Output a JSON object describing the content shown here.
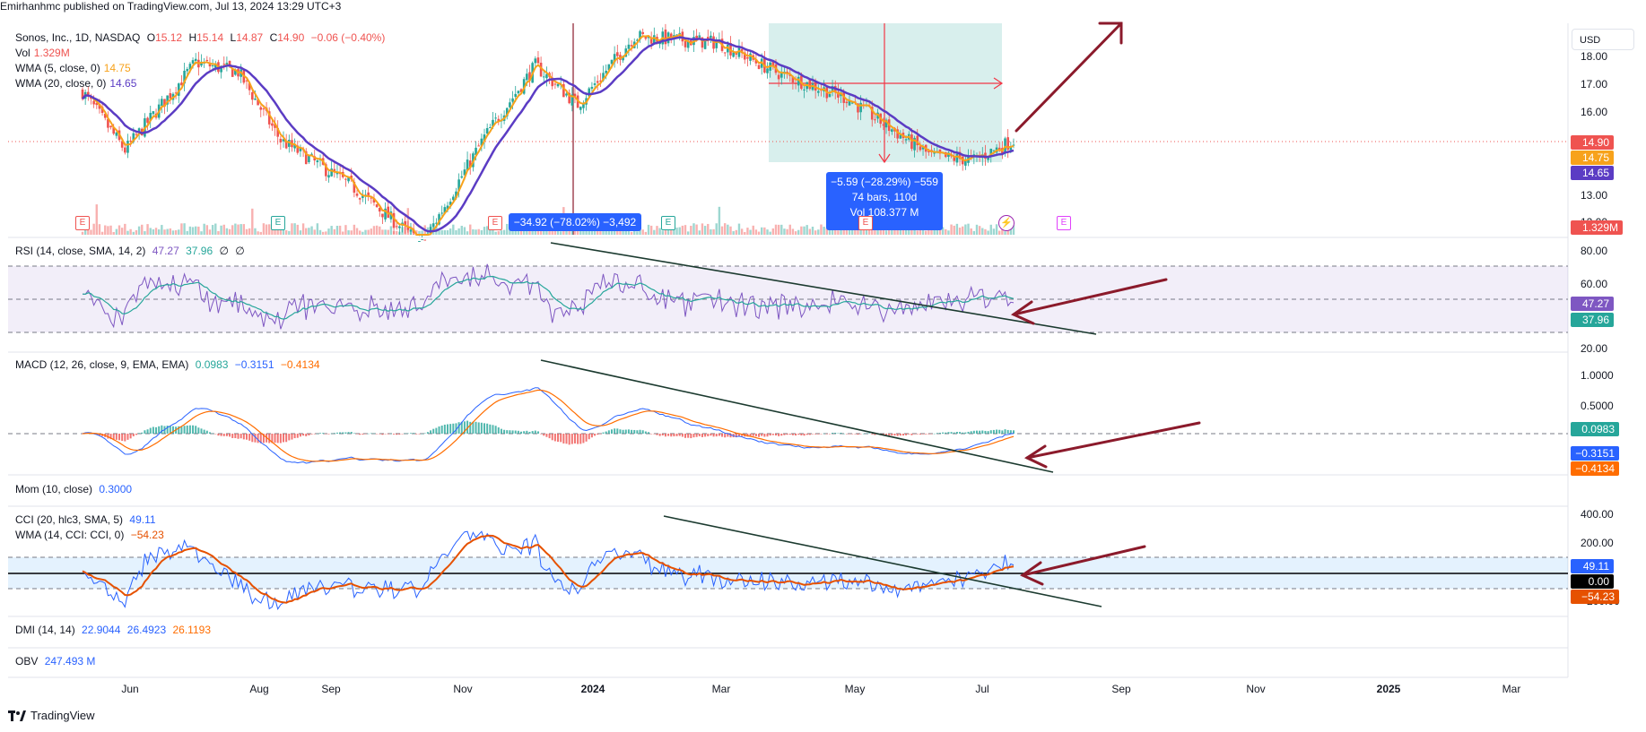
{
  "header": {
    "publisher": "Emirhanhmc published on TradingView.com, Jul 13, 2024 13:29 UTC+3"
  },
  "symbol_legend": {
    "name": "Sonos, Inc., 1D, NASDAQ",
    "o_label": "O",
    "o": "15.12",
    "h_label": "H",
    "h": "15.14",
    "l_label": "L",
    "l": "14.87",
    "c_label": "C",
    "c": "14.90",
    "change": "−0.06 (−0.40%)",
    "vol_label": "Vol",
    "vol": "1.329M",
    "wma5_label": "WMA (5, close, 0)",
    "wma5": "14.75",
    "wma20_label": "WMA (20, close, 0)",
    "wma20": "14.65"
  },
  "currency": "USD",
  "price_axis": [
    "18.00",
    "17.00",
    "16.00",
    "13.00",
    "12.00"
  ],
  "price_tags": {
    "close": "14.90",
    "wma5": "14.75",
    "wma20": "14.65",
    "vol": "1.329M"
  },
  "measure_tooltips": {
    "left": "−34.92 (−78.02%) −3,492",
    "right_line1": "−5.59 (−28.29%) −559",
    "right_line2": "74 bars, 110d",
    "right_line3": "Vol 108.377 M"
  },
  "earnings_marker": "E",
  "rsi": {
    "legend": "RSI (14, close, SMA, 14, 2)",
    "v1": "47.27",
    "v2": "37.96",
    "v3": "∅",
    "v4": "∅",
    "axis": [
      "80.00",
      "60.00",
      "20.00"
    ],
    "tags": [
      "47.27",
      "37.96"
    ]
  },
  "macd": {
    "legend": "MACD (12, 26, close, 9, EMA, EMA)",
    "v1": "0.0983",
    "v2": "−0.3151",
    "v3": "−0.4134",
    "axis": [
      "1.0000",
      "0.5000"
    ],
    "tags": [
      "0.0983",
      "−0.3151",
      "−0.4134"
    ]
  },
  "mom": {
    "legend": "Mom (10, close)",
    "v1": "0.3000"
  },
  "cci": {
    "legend": "CCI (20, hlc3, SMA, 5)",
    "v1": "49.11",
    "legend2": "WMA (14, CCI: CCI, 0)",
    "v2": "−54.23",
    "axis": [
      "400.00",
      "200.00",
      "−200.00"
    ],
    "tags": [
      "49.11",
      "0.00",
      "−54.23"
    ]
  },
  "dmi": {
    "legend": "DMI (14, 14)",
    "v1": "22.9044",
    "v2": "26.4923",
    "v3": "26.1193"
  },
  "obv": {
    "legend": "OBV",
    "v1": "247.493 M"
  },
  "x_axis": [
    "Jun",
    "Aug",
    "Sep",
    "Nov",
    "2024",
    "Mar",
    "May",
    "Jul",
    "Sep",
    "Nov",
    "2025",
    "Mar"
  ],
  "footer": {
    "brand": "TradingView"
  },
  "colors": {
    "up": "#26a69a",
    "down": "#ef5350",
    "wma5": "#f7a21b",
    "wma20": "#5b3cc4",
    "rsi": "#7e57c2",
    "rsi_ma": "#26a69a",
    "macd": "#2962ff",
    "signal": "#ff6d00",
    "cci": "#2962ff",
    "cci_wma": "#e65100",
    "arrow": "#8b1a2b",
    "trend": "#1b3a2f",
    "measure_box": "rgba(38,166,154,0.18)",
    "measure_red": "#f23645",
    "tooltip_blue": "#2962ff"
  },
  "chart_data": {
    "type": "line",
    "title": "Sonos, Inc., 1D, NASDAQ",
    "x": [
      "Jun",
      "Aug",
      "Sep",
      "Nov",
      "2024",
      "Mar",
      "May",
      "Jul"
    ],
    "series": [
      {
        "name": "Sonos, Inc., 1D, NASDAQ",
        "values": [
          16.4,
          17.4,
          14.9,
          11.6,
          17.3,
          18.2,
          17.0,
          14.3
        ]
      }
    ],
    "ylim": [
      12,
      18.5
    ],
    "last_close": 14.9,
    "grid": false
  }
}
